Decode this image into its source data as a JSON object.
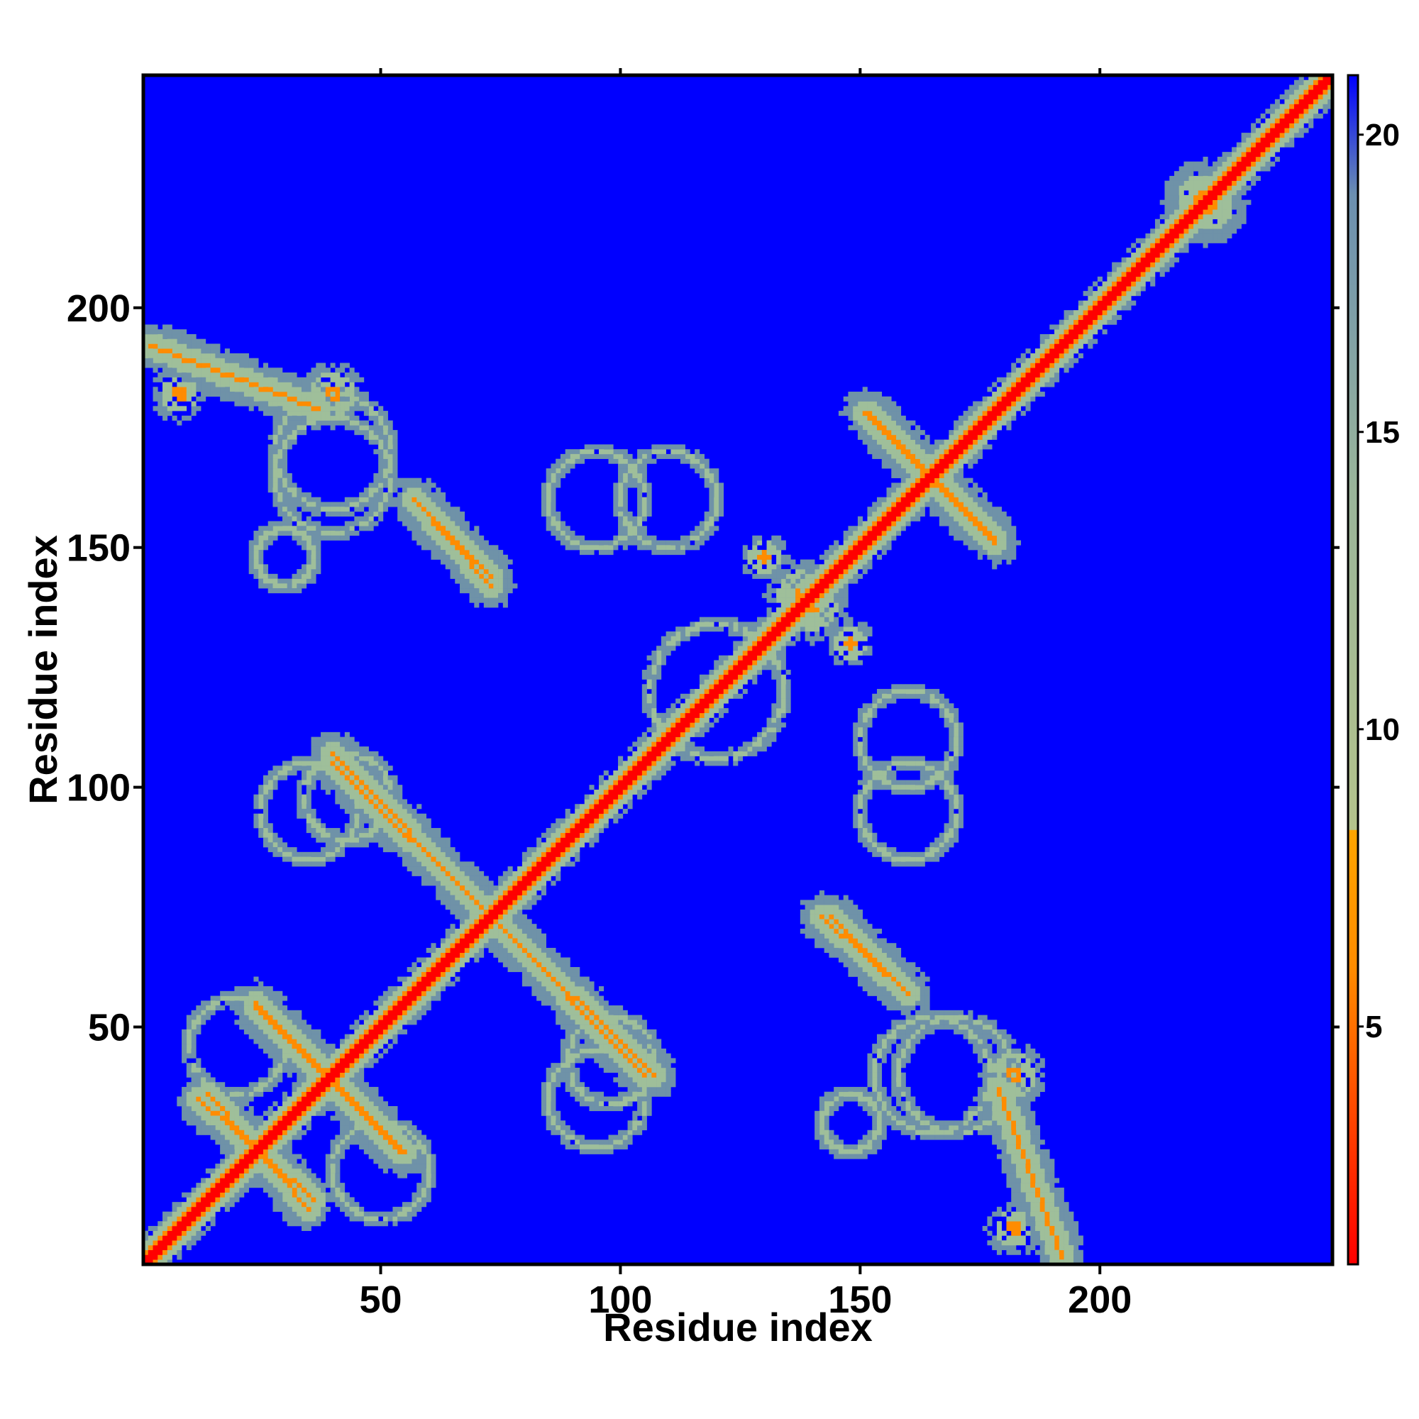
{
  "chart_data": {
    "type": "heatmap",
    "title": "",
    "xlabel": "Residue index",
    "ylabel": "Residue index",
    "xlim": [
      1,
      248
    ],
    "ylim": [
      1,
      248
    ],
    "x_ticks": [
      50,
      100,
      150,
      200
    ],
    "x_tick_labels": [
      "50",
      "100",
      "150",
      "200"
    ],
    "y_ticks": [
      50,
      100,
      150,
      200
    ],
    "y_tick_labels": [
      "50",
      "100",
      "150",
      "200"
    ],
    "colorbar": {
      "range": [
        1,
        21
      ],
      "ticks": [
        5,
        10,
        15,
        20
      ],
      "tick_labels": [
        "5",
        "10",
        "15",
        "20"
      ],
      "stops": [
        {
          "value": 1,
          "color": "#ff0000"
        },
        {
          "value": 6,
          "color": "#ff8c00"
        },
        {
          "value": 8.3,
          "color": "#ffa500"
        },
        {
          "value": 8.31,
          "color": "#b4c38c"
        },
        {
          "value": 14,
          "color": "#9ab59a"
        },
        {
          "value": 19,
          "color": "#6b8fb0"
        },
        {
          "value": 21,
          "color": "#0000ff"
        }
      ],
      "background_value": 21
    },
    "colors": {
      "background": "#0000ff",
      "diagonal": "#ff0000",
      "near": "#ff8c00",
      "mid": "#9fbf9a",
      "far": "#6f92a8"
    },
    "features": [
      {
        "kind": "diagonal",
        "from": [
          1,
          1
        ],
        "to": [
          248,
          248
        ]
      },
      {
        "kind": "antidiagonal_band",
        "from": [
          14,
          36
        ],
        "to": [
          35,
          12
        ],
        "min_distance": 6
      },
      {
        "kind": "antidiagonal_band",
        "from": [
          24,
          54
        ],
        "to": [
          55,
          24
        ],
        "min_distance": 6
      },
      {
        "kind": "antidiagonal_band",
        "from": [
          40,
          107
        ],
        "to": [
          105,
          40
        ],
        "min_distance": 5
      },
      {
        "kind": "antidiagonal_band",
        "from": [
          57,
          160
        ],
        "to": [
          73,
          142
        ],
        "min_distance": 6
      },
      {
        "kind": "antidiagonal_band",
        "from": [
          144,
          73
        ],
        "to": [
          160,
          57
        ],
        "min_distance": 6
      },
      {
        "kind": "antidiagonal_band",
        "from": [
          151,
          178
        ],
        "to": [
          178,
          152
        ],
        "min_distance": 6
      },
      {
        "kind": "antidiagonal_band",
        "from": [
          179,
          37
        ],
        "to": [
          192,
          2
        ],
        "min_distance": 9
      },
      {
        "kind": "cluster",
        "center": [
          40,
          182
        ],
        "radius": 7,
        "min_distance": 6
      },
      {
        "kind": "cluster",
        "center": [
          8,
          182
        ],
        "radius": 6,
        "min_distance": 7
      },
      {
        "kind": "cluster",
        "center": [
          222,
          222
        ],
        "radius": 9,
        "min_distance": 6
      },
      {
        "kind": "cluster",
        "center": [
          140,
          138
        ],
        "radius": 8,
        "min_distance": 6
      },
      {
        "kind": "cluster",
        "center": [
          130,
          148
        ],
        "radius": 5,
        "min_distance": 6
      }
    ]
  }
}
